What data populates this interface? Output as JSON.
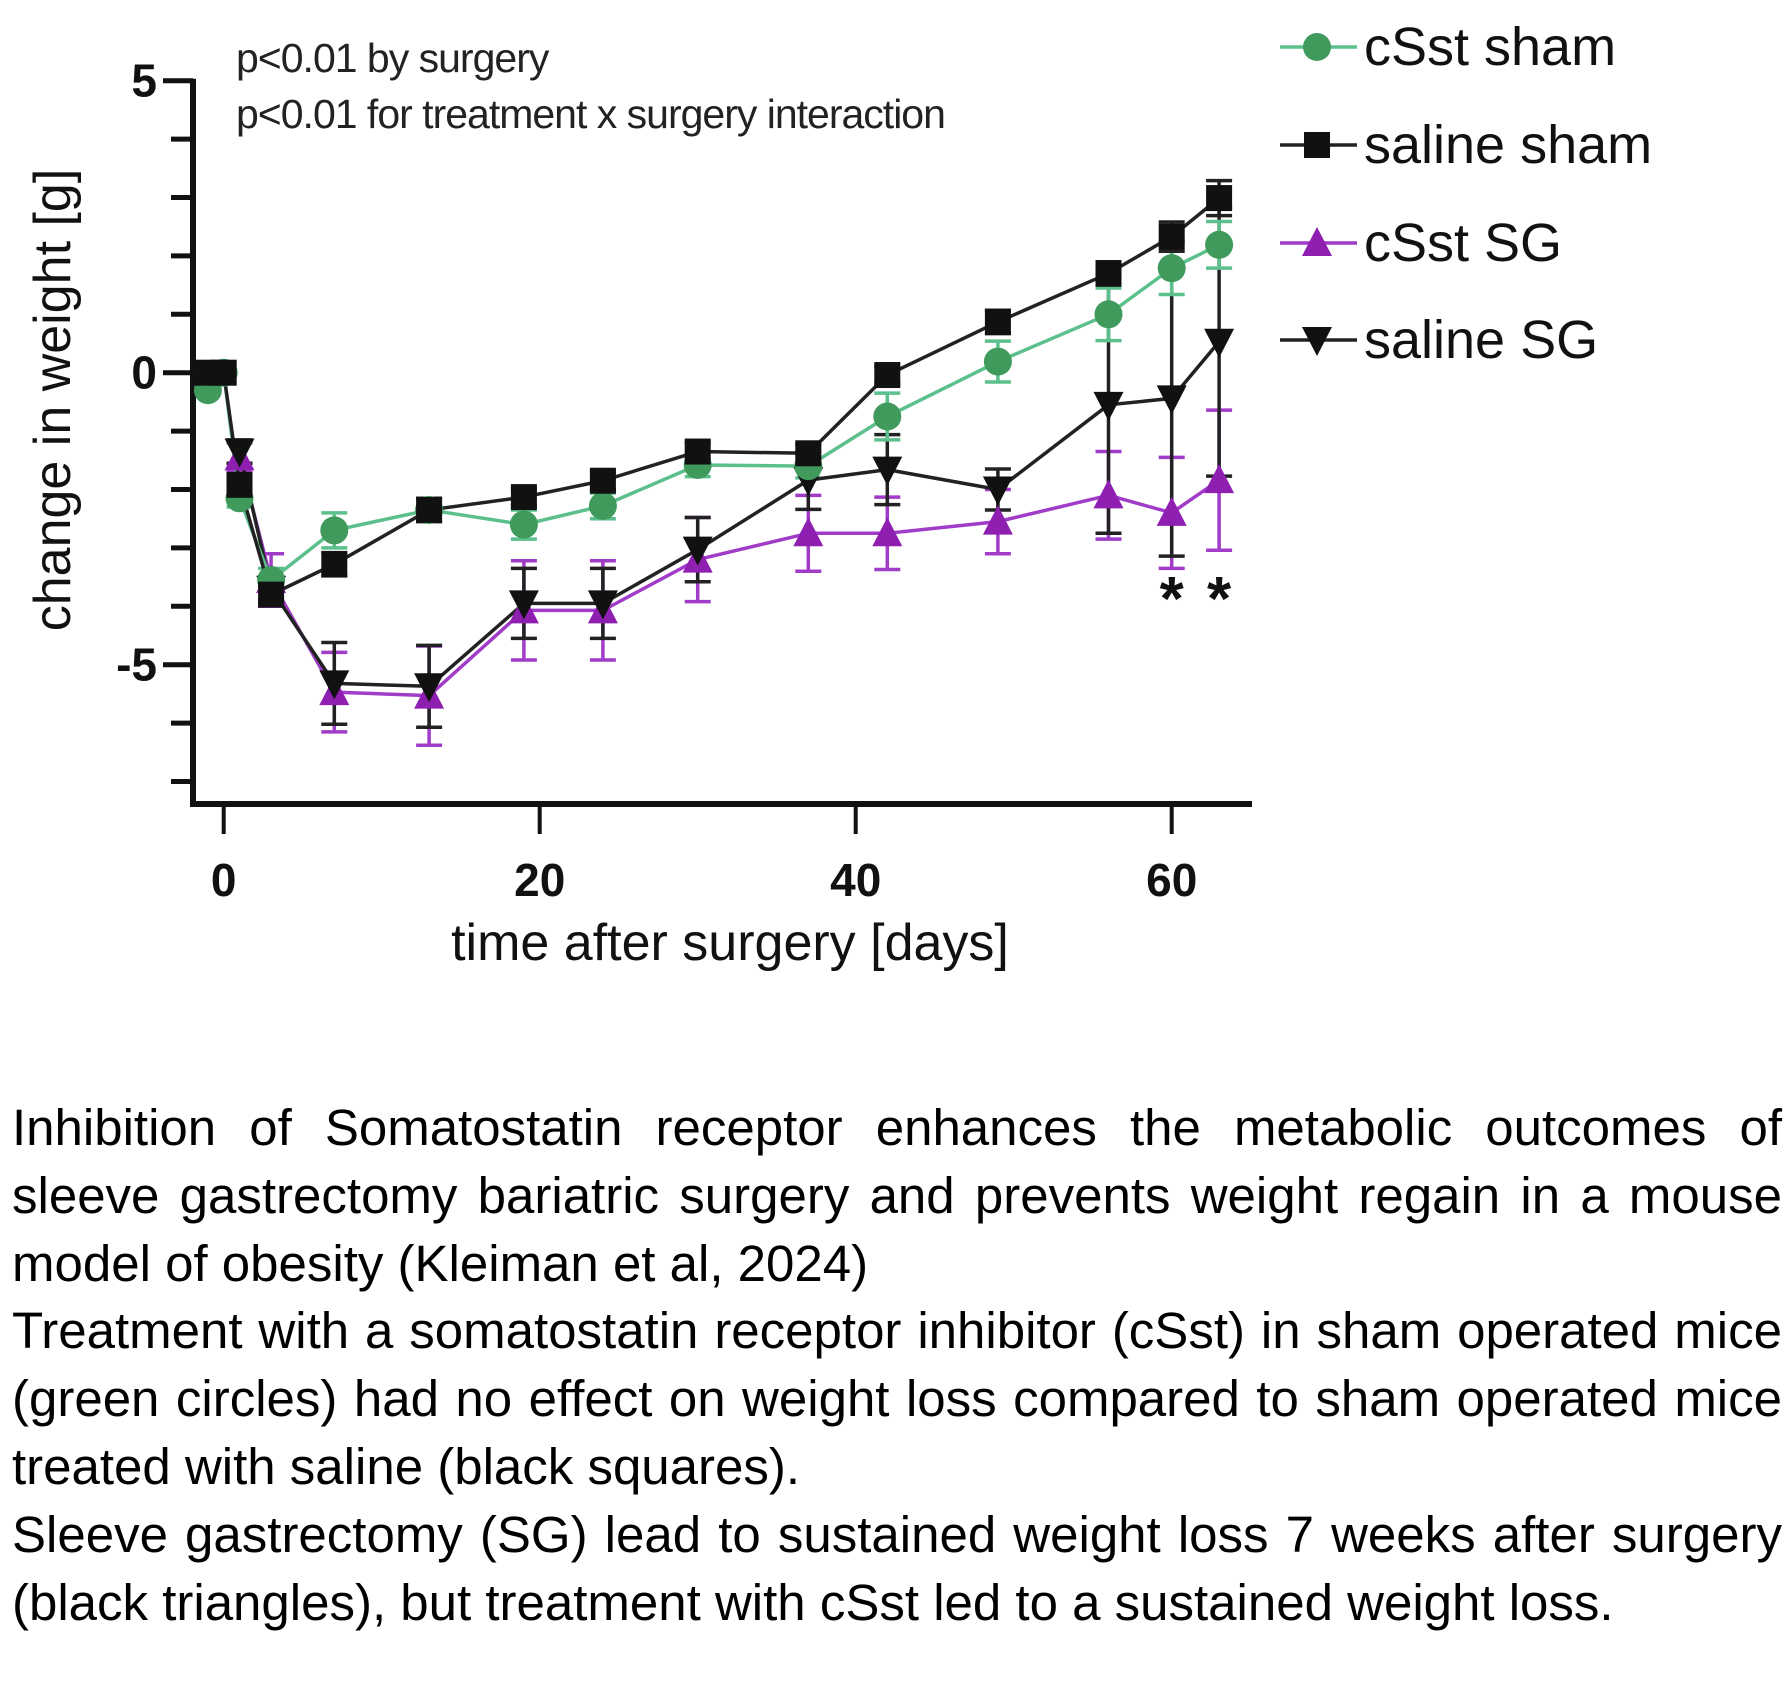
{
  "chart_data": {
    "type": "line",
    "title": "",
    "xlabel": "time after surgery [days]",
    "ylabel": "change in weight [g]",
    "xlim": [
      -2,
      64
    ],
    "ylim": [
      -7,
      5
    ],
    "x_ticks": [
      0,
      20,
      40,
      60
    ],
    "x_tick_labels": [
      "0",
      "20",
      "40",
      "60"
    ],
    "y_ticks": [
      5,
      0,
      -5
    ],
    "y_tick_labels": [
      "5",
      "0",
      "-5"
    ],
    "y_minor_step": 1,
    "grid": false,
    "legend_position": "right",
    "annotations": [
      "p<0.01 by surgery",
      "p<0.01 for treatment x surgery interaction"
    ],
    "significance_marks": [
      {
        "x": 60,
        "label": "*"
      },
      {
        "x": 63,
        "label": "*"
      }
    ],
    "series": [
      {
        "name": "cSst sham",
        "color": "#3f9a5c",
        "line_color": "#5cc08c",
        "marker": "circle",
        "x": [
          -1,
          0,
          1,
          3,
          7,
          13,
          19,
          24,
          30,
          37,
          42,
          49,
          56,
          60,
          63
        ],
        "y": [
          -0.3,
          0.0,
          -2.15,
          -3.55,
          -2.7,
          -2.35,
          -2.6,
          -2.28,
          -1.58,
          -1.6,
          -0.75,
          0.19,
          1.0,
          1.79,
          2.19
        ],
        "err": [
          0.05,
          0.05,
          0.15,
          0.2,
          0.3,
          0.2,
          0.25,
          0.22,
          0.2,
          0.2,
          0.4,
          0.35,
          0.45,
          0.45,
          0.4
        ]
      },
      {
        "name": "saline sham",
        "color": "#111111",
        "line_color": "#222222",
        "marker": "square",
        "x": [
          -1,
          0,
          1,
          3,
          7,
          13,
          19,
          24,
          30,
          37,
          42,
          49,
          56,
          60,
          63
        ],
        "y": [
          0.0,
          0.0,
          -1.92,
          -3.8,
          -3.28,
          -2.35,
          -2.13,
          -1.85,
          -1.35,
          -1.38,
          -0.04,
          0.87,
          1.7,
          2.33,
          2.99
        ],
        "err": [
          0.05,
          0.05,
          0.15,
          0.15,
          0.2,
          0.2,
          0.15,
          0.15,
          0.15,
          0.15,
          0.15,
          0.2,
          0.2,
          0.25,
          0.3
        ]
      },
      {
        "name": "cSst SG",
        "color": "#8e1fb0",
        "line_color": "#a03cc8",
        "marker": "triangle-up",
        "x": [
          1,
          3,
          7,
          13,
          19,
          24,
          30,
          37,
          42,
          49,
          56,
          60,
          63
        ],
        "y": [
          -1.45,
          -3.55,
          -5.47,
          -5.53,
          -4.07,
          -4.07,
          -3.2,
          -2.75,
          -2.75,
          -2.55,
          -2.1,
          -2.4,
          -1.84
        ],
        "err": [
          0.25,
          0.45,
          0.68,
          0.85,
          0.85,
          0.85,
          0.72,
          0.65,
          0.62,
          0.55,
          0.75,
          0.95,
          1.2
        ]
      },
      {
        "name": "saline SG",
        "color": "#111111",
        "line_color": "#222222",
        "marker": "triangle-down",
        "x": [
          1,
          3,
          7,
          13,
          19,
          24,
          30,
          37,
          42,
          49,
          56,
          60,
          63
        ],
        "y": [
          -1.35,
          -3.7,
          -5.32,
          -5.37,
          -3.95,
          -3.95,
          -3.03,
          -1.84,
          -1.66,
          -2.0,
          -0.55,
          -0.44,
          0.53
        ],
        "err": [
          0.2,
          0.2,
          0.7,
          0.7,
          0.6,
          0.6,
          0.55,
          0.5,
          0.6,
          0.35,
          2.2,
          2.7,
          2.3
        ]
      }
    ]
  },
  "caption": {
    "paragraphs": [
      "Inhibition of Somatostatin receptor enhances the metabolic outcomes of sleeve gastrectomy bariatric surgery and prevents weight regain in a mouse model of obesity (Kleiman et al, 2024)",
      "Treatment with a somatostatin receptor inhibitor (cSst) in sham operated mice (green circles) had no effect on weight loss compared to sham operated mice treated with saline (black squares).",
      "Sleeve gastrectomy (SG) lead to sustained weight loss 7 weeks after surgery (black triangles), but treatment with cSst led to a sustained weight loss."
    ]
  }
}
